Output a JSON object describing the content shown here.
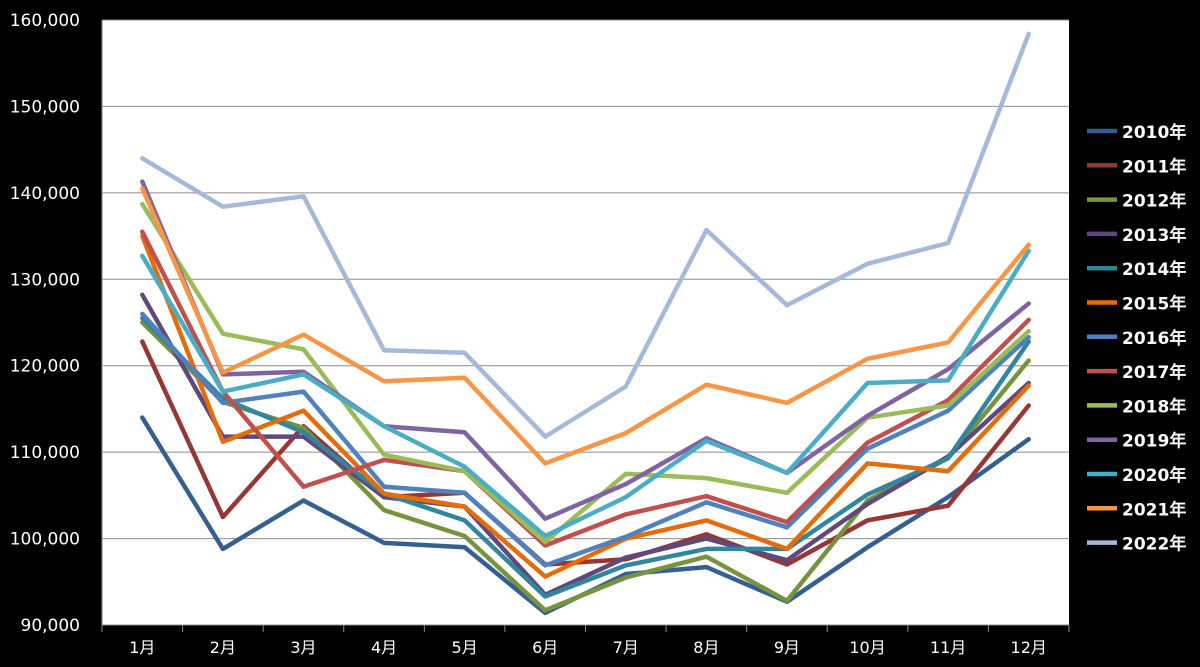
{
  "chart_data": {
    "type": "line",
    "title": "",
    "xlabel": "",
    "ylabel": "",
    "ylim": [
      90000,
      160000
    ],
    "y_ticks": [
      90000,
      100000,
      110000,
      120000,
      130000,
      140000,
      150000,
      160000
    ],
    "y_tick_labels": [
      "90,000",
      "100,000",
      "110,000",
      "120,000",
      "130,000",
      "140,000",
      "150,000",
      "160,000"
    ],
    "grid": true,
    "legend_position": "right",
    "categories": [
      "1月",
      "2月",
      "3月",
      "4月",
      "5月",
      "6月",
      "7月",
      "8月",
      "9月",
      "10月",
      "11月",
      "12月"
    ],
    "series": [
      {
        "name": "2010年",
        "color": "#365F91",
        "values": [
          114000,
          98800,
          104400,
          99500,
          99000,
          91400,
          95900,
          96700,
          92700,
          99000,
          104800,
          111500
        ]
      },
      {
        "name": "2011年",
        "color": "#953735",
        "values": [
          122800,
          102500,
          113000,
          104800,
          105300,
          97000,
          97600,
          100500,
          97000,
          102100,
          103800,
          115400
        ]
      },
      {
        "name": "2012年",
        "color": "#77933C",
        "values": [
          125000,
          115800,
          112800,
          103300,
          100300,
          91700,
          95500,
          97900,
          92800,
          104400,
          109300,
          120600
        ]
      },
      {
        "name": "2013年",
        "color": "#5F497A",
        "values": [
          128200,
          111800,
          111800,
          104800,
          103700,
          93500,
          97800,
          100000,
          97500,
          104000,
          109500,
          118000
        ]
      },
      {
        "name": "2014年",
        "color": "#31859C",
        "values": [
          125500,
          116200,
          112300,
          105200,
          102100,
          93300,
          96900,
          98800,
          98800,
          105100,
          109300,
          122800
        ]
      },
      {
        "name": "2015年",
        "color": "#E46C0A",
        "values": [
          135000,
          111200,
          114800,
          105200,
          103700,
          95600,
          100000,
          102100,
          98800,
          108700,
          107800,
          117700
        ]
      },
      {
        "name": "2016年",
        "color": "#4F81BD",
        "values": [
          126000,
          115700,
          117000,
          106000,
          105300,
          96900,
          100200,
          104200,
          101300,
          110400,
          114800,
          123300
        ]
      },
      {
        "name": "2017年",
        "color": "#C0504D",
        "values": [
          135500,
          117000,
          106000,
          109100,
          107800,
          99200,
          102800,
          104900,
          101900,
          111100,
          116000,
          125300
        ]
      },
      {
        "name": "2018年",
        "color": "#9BBB59",
        "values": [
          138700,
          123700,
          121900,
          109700,
          107800,
          99600,
          107500,
          107000,
          105300,
          114000,
          115400,
          124000
        ]
      },
      {
        "name": "2019年",
        "color": "#8064A2",
        "values": [
          141300,
          119000,
          119300,
          113000,
          112300,
          102300,
          106300,
          111600,
          107600,
          114200,
          119600,
          127200
        ]
      },
      {
        "name": "2020年",
        "color": "#4BACC6",
        "values": [
          132700,
          117000,
          119000,
          113000,
          108300,
          100300,
          104800,
          111300,
          107600,
          118000,
          118300,
          133300
        ]
      },
      {
        "name": "2021年",
        "color": "#F79646",
        "values": [
          140500,
          119200,
          123600,
          118200,
          118600,
          108700,
          112200,
          117800,
          115700,
          120800,
          122700,
          134000
        ]
      },
      {
        "name": "2022年",
        "color": "#A6B9DA",
        "values": [
          144000,
          138400,
          139600,
          121800,
          121500,
          111800,
          117600,
          135700,
          127000,
          131800,
          134200,
          158400
        ]
      }
    ]
  }
}
